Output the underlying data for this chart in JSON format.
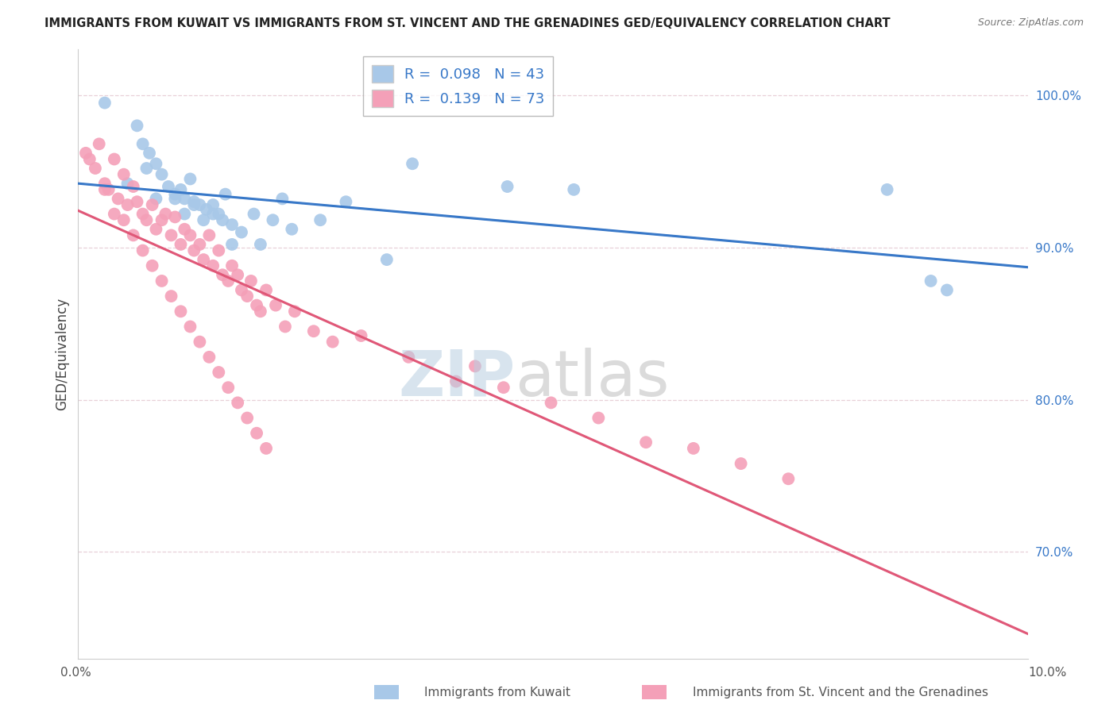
{
  "title": "IMMIGRANTS FROM KUWAIT VS IMMIGRANTS FROM ST. VINCENT AND THE GRENADINES GED/EQUIVALENCY CORRELATION CHART",
  "source": "Source: ZipAtlas.com",
  "ylabel": "GED/Equivalency",
  "xlim": [
    0.0,
    10.0
  ],
  "ylim": [
    63.0,
    103.0
  ],
  "yticks": [
    70.0,
    80.0,
    90.0,
    100.0
  ],
  "ytick_labels": [
    "70.0%",
    "80.0%",
    "90.0%",
    "100.0%"
  ],
  "kuwait_R": 0.098,
  "kuwait_N": 43,
  "vincent_R": 0.139,
  "vincent_N": 73,
  "kuwait_color": "#a8c8e8",
  "vincent_color": "#f4a0b8",
  "kuwait_line_color": "#3878c8",
  "vincent_line_color": "#e05878",
  "legend_label_kuwait": "Immigrants from Kuwait",
  "legend_label_vincent": "Immigrants from St. Vincent and the Grenadines",
  "background_color": "#ffffff",
  "grid_color": "#e8d0d8",
  "kuwait_x": [
    0.28,
    0.62,
    0.68,
    0.75,
    0.82,
    0.88,
    0.95,
    1.02,
    1.08,
    1.12,
    1.18,
    1.22,
    1.28,
    1.35,
    1.42,
    1.48,
    1.55,
    1.62,
    1.72,
    1.85,
    1.92,
    2.05,
    2.15,
    2.25,
    2.55,
    2.82,
    3.25,
    3.52,
    4.52,
    5.22,
    8.52,
    8.98,
    9.15,
    0.52,
    0.72,
    0.82,
    1.02,
    1.12,
    1.22,
    1.32,
    1.42,
    1.52,
    1.62
  ],
  "kuwait_y": [
    99.5,
    98.0,
    96.8,
    96.2,
    95.5,
    94.8,
    94.0,
    93.5,
    93.8,
    93.2,
    94.5,
    93.0,
    92.8,
    92.5,
    92.8,
    92.2,
    93.5,
    91.5,
    91.0,
    92.2,
    90.2,
    91.8,
    93.2,
    91.2,
    91.8,
    93.0,
    89.2,
    95.5,
    94.0,
    93.8,
    93.8,
    87.8,
    87.2,
    94.2,
    95.2,
    93.2,
    93.2,
    92.2,
    92.8,
    91.8,
    92.2,
    91.8,
    90.2
  ],
  "vincent_x": [
    0.08,
    0.12,
    0.18,
    0.22,
    0.28,
    0.32,
    0.38,
    0.42,
    0.48,
    0.52,
    0.58,
    0.62,
    0.68,
    0.72,
    0.78,
    0.82,
    0.88,
    0.92,
    0.98,
    1.02,
    1.08,
    1.12,
    1.18,
    1.22,
    1.28,
    1.32,
    1.38,
    1.42,
    1.48,
    1.52,
    1.58,
    1.62,
    1.68,
    1.72,
    1.78,
    1.82,
    1.88,
    1.92,
    1.98,
    2.08,
    2.18,
    2.28,
    2.48,
    2.68,
    2.98,
    3.48,
    3.98,
    4.18,
    4.48,
    4.98,
    5.48,
    5.98,
    6.48,
    6.98,
    7.48,
    0.28,
    0.38,
    0.48,
    0.58,
    0.68,
    0.78,
    0.88,
    0.98,
    1.08,
    1.18,
    1.28,
    1.38,
    1.48,
    1.58,
    1.68,
    1.78,
    1.88,
    1.98
  ],
  "vincent_y": [
    96.2,
    95.8,
    95.2,
    96.8,
    94.2,
    93.8,
    95.8,
    93.2,
    94.8,
    92.8,
    94.0,
    93.0,
    92.2,
    91.8,
    92.8,
    91.2,
    91.8,
    92.2,
    90.8,
    92.0,
    90.2,
    91.2,
    90.8,
    89.8,
    90.2,
    89.2,
    90.8,
    88.8,
    89.8,
    88.2,
    87.8,
    88.8,
    88.2,
    87.2,
    86.8,
    87.8,
    86.2,
    85.8,
    87.2,
    86.2,
    84.8,
    85.8,
    84.5,
    83.8,
    84.2,
    82.8,
    81.2,
    82.2,
    80.8,
    79.8,
    78.8,
    77.2,
    76.8,
    75.8,
    74.8,
    93.8,
    92.2,
    91.8,
    90.8,
    89.8,
    88.8,
    87.8,
    86.8,
    85.8,
    84.8,
    83.8,
    82.8,
    81.8,
    80.8,
    79.8,
    78.8,
    77.8,
    76.8
  ]
}
